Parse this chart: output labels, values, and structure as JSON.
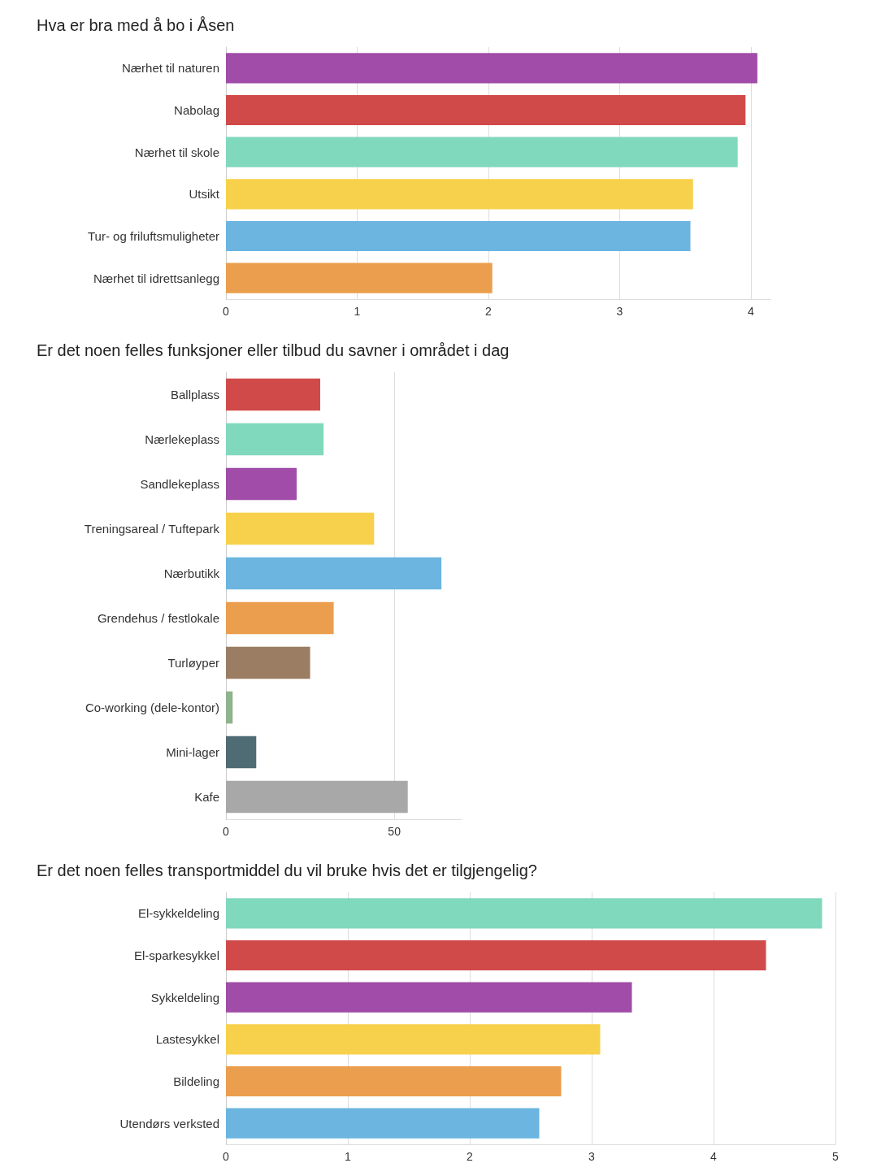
{
  "chart_data": [
    {
      "type": "bar",
      "orientation": "horizontal",
      "title": "Hva er bra med å bo i Åsen",
      "categories": [
        "Nærhet til naturen",
        "Nabolag",
        "Nærhet til skole",
        "Utsikt",
        "Tur- og friluftsmuligheter",
        "Nærhet til idrettsanlegg"
      ],
      "values": [
        4.05,
        3.96,
        3.9,
        3.56,
        3.54,
        2.03
      ],
      "colors": [
        "#a04ca8",
        "#d14a4a",
        "#80d8bd",
        "#f7d14b",
        "#6bb5e0",
        "#eb9e4d"
      ],
      "xlim": [
        0,
        4.15
      ],
      "xticks": [
        0,
        1,
        2,
        3,
        4
      ],
      "grid": "x"
    },
    {
      "type": "bar",
      "orientation": "horizontal",
      "title": "Er det noen felles funksjoner eller tilbud du savner i området i dag",
      "categories": [
        "Ballplass",
        "Nærlekeplass",
        "Sandlekeplass",
        "Treningsareal / Tuftepark",
        "Nærbutikk",
        "Grendehus / festlokale",
        "Turløyper",
        "Co-working (dele-kontor)",
        "Mini-lager",
        "Kafe"
      ],
      "values": [
        28,
        29,
        21,
        44,
        64,
        32,
        25,
        2,
        9,
        54
      ],
      "colors": [
        "#d14a4a",
        "#80d8bd",
        "#a04ca8",
        "#f7d14b",
        "#6bb5e0",
        "#eb9e4d",
        "#9a7d62",
        "#8fb38a",
        "#4f6b73",
        "#a8a8a8"
      ],
      "xlim": [
        0,
        70
      ],
      "xticks": [
        0,
        50
      ],
      "grid": "x"
    },
    {
      "type": "bar",
      "orientation": "horizontal",
      "title": "Er det noen felles transportmiddel du vil bruke hvis det er tilgjengelig?",
      "categories": [
        "El-sykkeldeling",
        "El-sparkesykkel",
        "Sykkeldeling",
        "Lastesykkel",
        "Bildeling",
        "Utendørs verksted"
      ],
      "values": [
        4.89,
        4.43,
        3.33,
        3.07,
        2.75,
        2.57
      ],
      "colors": [
        "#80d8bd",
        "#d14a4a",
        "#a04ca8",
        "#f7d14b",
        "#eb9e4d",
        "#6bb5e0"
      ],
      "xlim": [
        0,
        5
      ],
      "xticks": [
        0,
        1,
        2,
        3,
        4,
        5
      ],
      "grid": "x"
    }
  ]
}
